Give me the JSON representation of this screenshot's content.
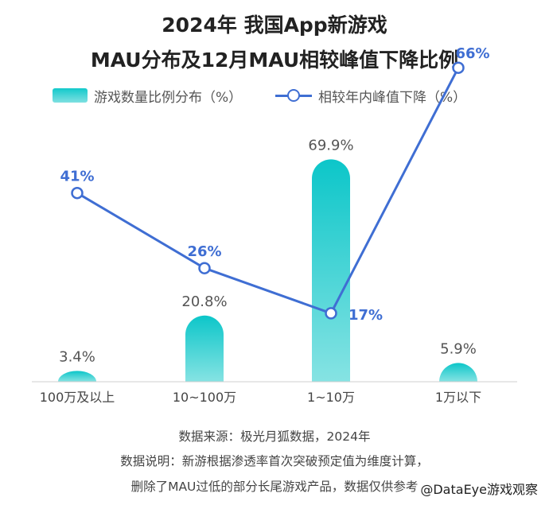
{
  "title_line1": "2024年 我国App新游戏",
  "title_line2": "MAU分布及12月MAU相较峰值下降比例",
  "chart_data": {
    "type": "bar+line",
    "categories": [
      "100万及以上",
      "10~100万",
      "1~10万",
      "1万以下"
    ],
    "series": [
      {
        "name": "游戏数量比例分布（%）",
        "type": "bar",
        "values": [
          3.4,
          20.8,
          69.9,
          5.9
        ],
        "labels": [
          "3.4%",
          "20.8%",
          "69.9%",
          "5.9%"
        ],
        "color": "#12c9cb"
      },
      {
        "name": "相较年内峰值下降（%）",
        "type": "line",
        "values": [
          41,
          26,
          17,
          66
        ],
        "labels": [
          "41%",
          "26%",
          "17%",
          "66%"
        ],
        "color": "#3f6ed3"
      }
    ],
    "legend_position": "top",
    "grid": false
  },
  "footer": {
    "line1": "数据来源：极光月狐数据，2024年",
    "line2": "数据说明：新游根据渗透率首次突破预定值为维度计算，",
    "line3": "删除了MAU过低的部分长尾游戏产品，数据仅供参考"
  },
  "watermark": "@DataEye游戏观察"
}
